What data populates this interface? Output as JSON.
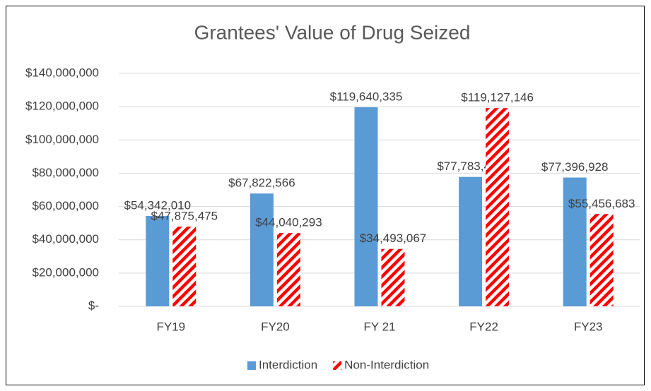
{
  "chart_data": {
    "type": "bar",
    "title": "Grantees' Value of Drug Seized",
    "categories": [
      "FY19",
      "FY20",
      "FY 21",
      "FY22",
      "FY23"
    ],
    "series": [
      {
        "name": "Interdiction",
        "color": "#5b9bd5",
        "hatch": false,
        "values": [
          54342010,
          67822566,
          119640335,
          77783484,
          77396928
        ],
        "value_labels": [
          "$54,342,010",
          "$67,822,566",
          "$119,640,335",
          "$77,783,484",
          "$77,396,928"
        ]
      },
      {
        "name": "Non-Interdiction",
        "color": "#ff0000",
        "hatch": true,
        "values": [
          47875475,
          44040293,
          34493067,
          119127146,
          55456683
        ],
        "value_labels": [
          "$47,875,475",
          "$44,040,293",
          "$34,493,067",
          "$119,127,146",
          "$55,456,683"
        ]
      }
    ],
    "ylim": [
      0,
      140000000
    ],
    "yticks": [
      {
        "value": 0,
        "label": "$-"
      },
      {
        "value": 20000000,
        "label": "$20,000,000"
      },
      {
        "value": 40000000,
        "label": "$40,000,000"
      },
      {
        "value": 60000000,
        "label": "$60,000,000"
      },
      {
        "value": 80000000,
        "label": "$80,000,000"
      },
      {
        "value": 100000000,
        "label": "$100,000,000"
      },
      {
        "value": 120000000,
        "label": "$120,000,000"
      },
      {
        "value": 140000000,
        "label": "$140,000,000"
      }
    ],
    "grid": true,
    "legend": "bottom"
  }
}
